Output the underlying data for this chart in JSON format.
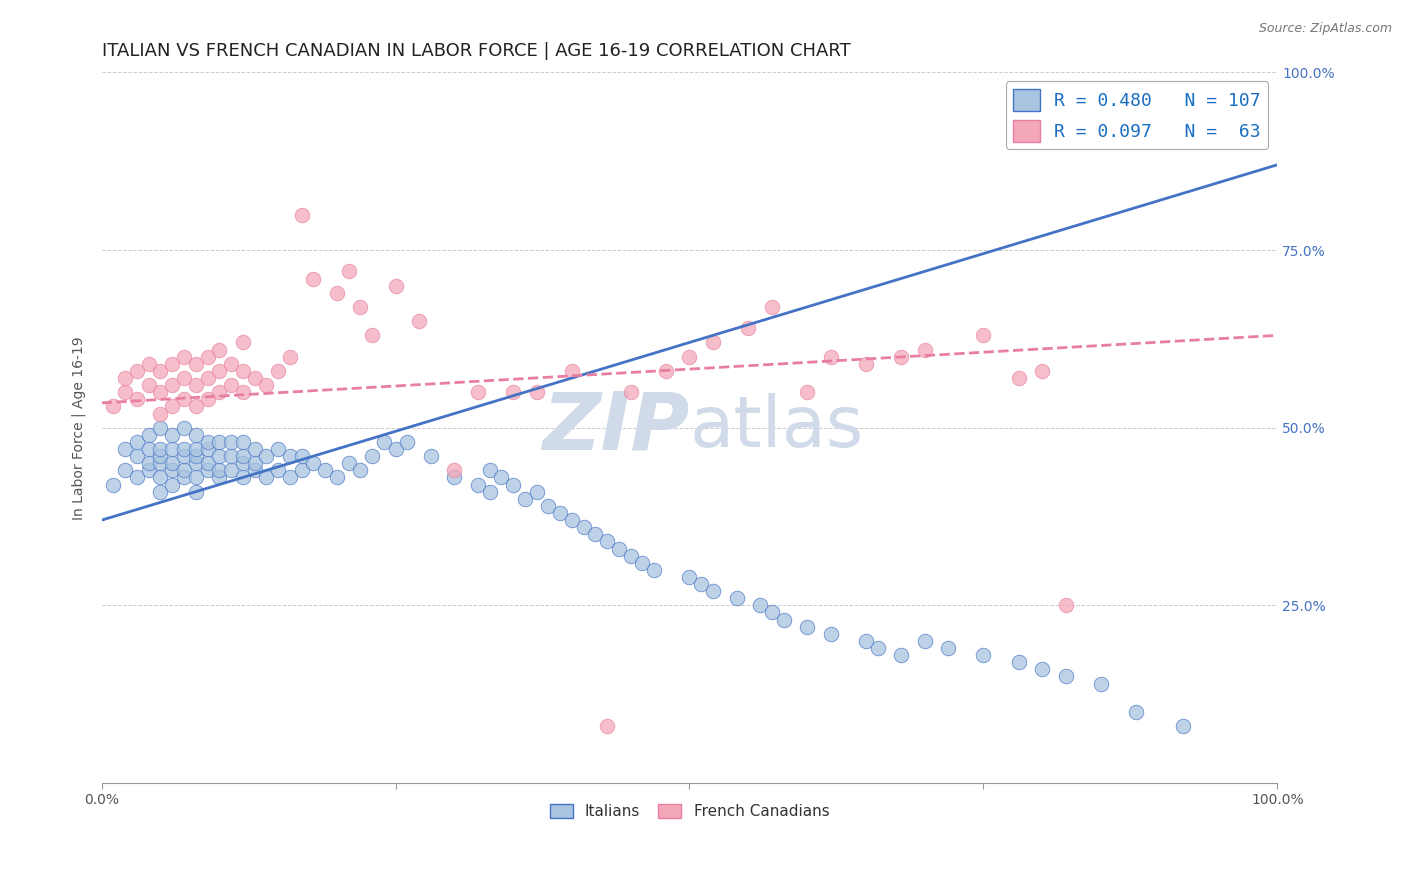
{
  "title": "ITALIAN VS FRENCH CANADIAN IN LABOR FORCE | AGE 16-19 CORRELATION CHART",
  "source": "Source: ZipAtlas.com",
  "ylabel": "In Labor Force | Age 16-19",
  "xlim": [
    0.0,
    1.0
  ],
  "ylim": [
    0.0,
    1.0
  ],
  "xticks": [
    0.0,
    0.25,
    0.5,
    0.75,
    1.0
  ],
  "yticks": [
    0.25,
    0.5,
    0.75,
    1.0
  ],
  "xticklabels_left": [
    "0.0%",
    "",
    "",
    "",
    "100.0%"
  ],
  "xticklabels_right": [
    "",
    "",
    "",
    "",
    "100.0%"
  ],
  "yticklabels_left": [
    "",
    "",
    "",
    ""
  ],
  "yticklabels_right": [
    "25.0%",
    "50.0%",
    "75.0%",
    "100.0%"
  ],
  "italian_R": 0.48,
  "italian_N": 107,
  "french_R": 0.097,
  "french_N": 63,
  "italian_color": "#a8c4e0",
  "french_color": "#f4a7b9",
  "italian_line_color": "#4472c4",
  "french_line_color": "#e87fa0",
  "legend_R_color": "#1a6fc4",
  "watermark_color": "#d0dae8",
  "background_color": "#ffffff",
  "title_fontsize": 13,
  "label_fontsize": 10,
  "tick_fontsize": 10,
  "italian_line_start_x": 0.0,
  "italian_line_start_y": 0.37,
  "italian_line_end_x": 1.0,
  "italian_line_end_y": 0.87,
  "french_line_start_x": 0.0,
  "french_line_start_y": 0.535,
  "french_line_end_x": 1.0,
  "french_line_end_y": 0.63,
  "italian_x_data": [
    0.01,
    0.02,
    0.02,
    0.03,
    0.03,
    0.03,
    0.04,
    0.04,
    0.04,
    0.04,
    0.05,
    0.05,
    0.05,
    0.05,
    0.05,
    0.05,
    0.06,
    0.06,
    0.06,
    0.06,
    0.06,
    0.07,
    0.07,
    0.07,
    0.07,
    0.07,
    0.08,
    0.08,
    0.08,
    0.08,
    0.08,
    0.08,
    0.09,
    0.09,
    0.09,
    0.09,
    0.1,
    0.1,
    0.1,
    0.1,
    0.11,
    0.11,
    0.11,
    0.12,
    0.12,
    0.12,
    0.12,
    0.13,
    0.13,
    0.13,
    0.14,
    0.14,
    0.15,
    0.15,
    0.16,
    0.16,
    0.17,
    0.17,
    0.18,
    0.19,
    0.2,
    0.21,
    0.22,
    0.23,
    0.24,
    0.25,
    0.26,
    0.28,
    0.3,
    0.32,
    0.33,
    0.33,
    0.34,
    0.35,
    0.36,
    0.37,
    0.38,
    0.39,
    0.4,
    0.41,
    0.42,
    0.43,
    0.44,
    0.45,
    0.46,
    0.47,
    0.5,
    0.51,
    0.52,
    0.54,
    0.56,
    0.57,
    0.58,
    0.6,
    0.62,
    0.65,
    0.66,
    0.68,
    0.7,
    0.72,
    0.75,
    0.78,
    0.8,
    0.82,
    0.85,
    0.88,
    0.92
  ],
  "italian_y_data": [
    0.42,
    0.44,
    0.47,
    0.43,
    0.46,
    0.48,
    0.44,
    0.45,
    0.47,
    0.49,
    0.41,
    0.43,
    0.45,
    0.46,
    0.47,
    0.5,
    0.42,
    0.44,
    0.45,
    0.47,
    0.49,
    0.43,
    0.44,
    0.46,
    0.47,
    0.5,
    0.41,
    0.43,
    0.45,
    0.46,
    0.47,
    0.49,
    0.44,
    0.45,
    0.47,
    0.48,
    0.43,
    0.44,
    0.46,
    0.48,
    0.44,
    0.46,
    0.48,
    0.43,
    0.45,
    0.46,
    0.48,
    0.44,
    0.45,
    0.47,
    0.43,
    0.46,
    0.44,
    0.47,
    0.43,
    0.46,
    0.44,
    0.46,
    0.45,
    0.44,
    0.43,
    0.45,
    0.44,
    0.46,
    0.48,
    0.47,
    0.48,
    0.46,
    0.43,
    0.42,
    0.41,
    0.44,
    0.43,
    0.42,
    0.4,
    0.41,
    0.39,
    0.38,
    0.37,
    0.36,
    0.35,
    0.34,
    0.33,
    0.32,
    0.31,
    0.3,
    0.29,
    0.28,
    0.27,
    0.26,
    0.25,
    0.24,
    0.23,
    0.22,
    0.21,
    0.2,
    0.19,
    0.18,
    0.2,
    0.19,
    0.18,
    0.17,
    0.16,
    0.15,
    0.14,
    0.1,
    0.08
  ],
  "french_x_data": [
    0.01,
    0.02,
    0.02,
    0.03,
    0.03,
    0.04,
    0.04,
    0.05,
    0.05,
    0.05,
    0.06,
    0.06,
    0.06,
    0.07,
    0.07,
    0.07,
    0.08,
    0.08,
    0.08,
    0.09,
    0.09,
    0.09,
    0.1,
    0.1,
    0.1,
    0.11,
    0.11,
    0.12,
    0.12,
    0.12,
    0.13,
    0.14,
    0.15,
    0.16,
    0.17,
    0.18,
    0.2,
    0.21,
    0.22,
    0.23,
    0.25,
    0.27,
    0.3,
    0.32,
    0.35,
    0.37,
    0.4,
    0.43,
    0.45,
    0.48,
    0.5,
    0.52,
    0.55,
    0.57,
    0.6,
    0.62,
    0.65,
    0.68,
    0.7,
    0.75,
    0.78,
    0.8,
    0.82
  ],
  "french_y_data": [
    0.53,
    0.55,
    0.57,
    0.54,
    0.58,
    0.56,
    0.59,
    0.52,
    0.55,
    0.58,
    0.53,
    0.56,
    0.59,
    0.54,
    0.57,
    0.6,
    0.53,
    0.56,
    0.59,
    0.54,
    0.57,
    0.6,
    0.55,
    0.58,
    0.61,
    0.56,
    0.59,
    0.55,
    0.58,
    0.62,
    0.57,
    0.56,
    0.58,
    0.6,
    0.8,
    0.71,
    0.69,
    0.72,
    0.67,
    0.63,
    0.7,
    0.65,
    0.44,
    0.55,
    0.55,
    0.55,
    0.58,
    0.08,
    0.55,
    0.58,
    0.6,
    0.62,
    0.64,
    0.67,
    0.55,
    0.6,
    0.59,
    0.6,
    0.61,
    0.63,
    0.57,
    0.58,
    0.25
  ]
}
